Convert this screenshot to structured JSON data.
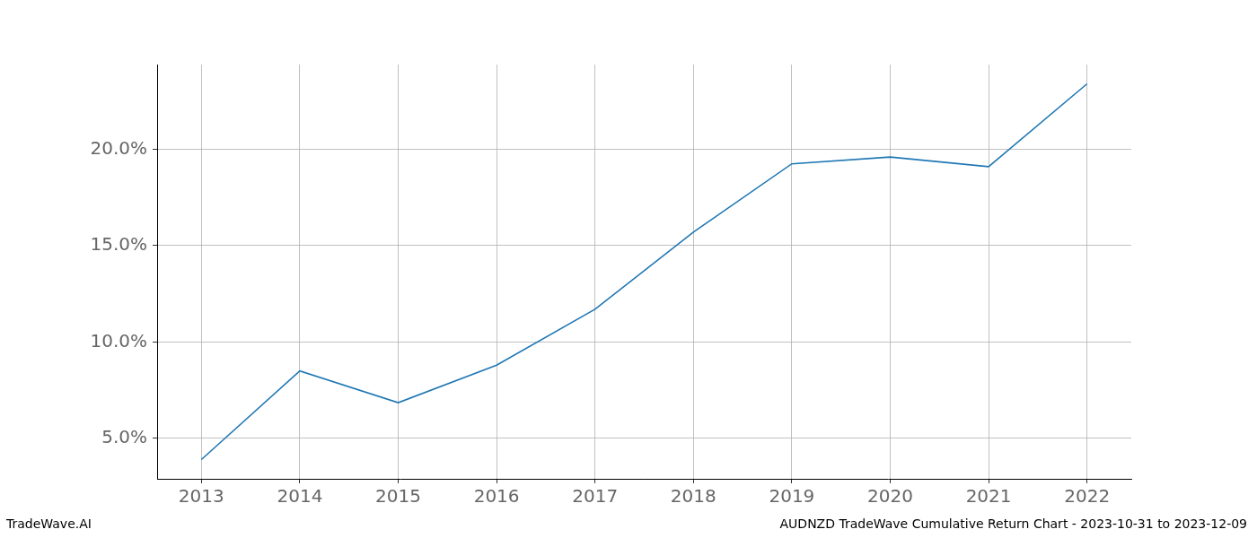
{
  "chart_data": {
    "type": "line",
    "title": "AUDNZD TradeWave Cumulative Return Chart - 2023-10-31 to 2023-12-09",
    "annotations": [
      "TradeWave.AI"
    ],
    "x": [
      2013,
      2014,
      2015,
      2016,
      2017,
      2018,
      2019,
      2020,
      2021,
      2022
    ],
    "values": [
      3.9,
      8.5,
      6.85,
      8.8,
      11.7,
      15.7,
      19.25,
      19.6,
      19.1,
      23.4
    ],
    "color": "#1f77b4",
    "xlim": [
      2012.55,
      2022.45
    ],
    "xticks": [
      2013,
      2014,
      2015,
      2016,
      2017,
      2018,
      2019,
      2020,
      2021,
      2022
    ],
    "ylim": [
      2.9,
      24.4
    ],
    "yticks": [
      {
        "value": 5,
        "label": "5.0%"
      },
      {
        "value": 10,
        "label": "10.0%"
      },
      {
        "value": 15,
        "label": "15.0%"
      },
      {
        "value": 20,
        "label": "20.0%"
      }
    ],
    "grid": true
  }
}
